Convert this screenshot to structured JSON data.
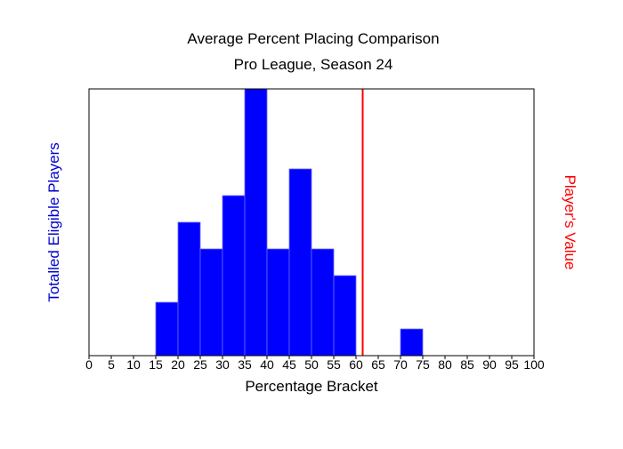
{
  "chart_data": {
    "type": "bar",
    "title": "Average Percent Placing Comparison",
    "subtitle": "Pro League, Season 24",
    "xlabel": "Percentage Bracket",
    "ylabel": "Totalled Eligible Players",
    "y2label": "Player's Value",
    "xlim": [
      0,
      100
    ],
    "bin_width": 5,
    "x_ticks": [
      "0",
      "5",
      "10",
      "15",
      "20",
      "25",
      "30",
      "35",
      "40",
      "45",
      "50",
      "55",
      "60",
      "65",
      "70",
      "75",
      "80",
      "85",
      "90",
      "95",
      "100"
    ],
    "bins": [
      {
        "start": 15,
        "end": 20,
        "count": 2
      },
      {
        "start": 20,
        "end": 25,
        "count": 5
      },
      {
        "start": 25,
        "end": 30,
        "count": 4
      },
      {
        "start": 30,
        "end": 35,
        "count": 6
      },
      {
        "start": 35,
        "end": 40,
        "count": 10
      },
      {
        "start": 40,
        "end": 45,
        "count": 4
      },
      {
        "start": 45,
        "end": 50,
        "count": 7
      },
      {
        "start": 50,
        "end": 55,
        "count": 4
      },
      {
        "start": 55,
        "end": 60,
        "count": 3
      },
      {
        "start": 70,
        "end": 75,
        "count": 1
      }
    ],
    "ylim": [
      0,
      10
    ],
    "player_value": 61.5,
    "colors": {
      "bars": "#0000ff",
      "bar_edge": "#6a6aff",
      "player_line": "#ff0000",
      "ylabel": "#0000cc",
      "y2label": "#ff0000",
      "text": "#000000"
    },
    "grid": false,
    "legend": "none"
  }
}
